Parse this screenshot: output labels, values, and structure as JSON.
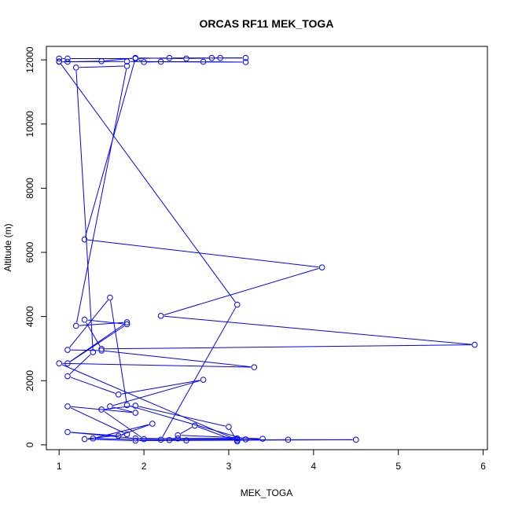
{
  "chart_data": {
    "type": "line",
    "title": "ORCAS RF11 MEK_TOGA",
    "xlabel": "MEK_TOGA",
    "ylabel": "Altitude (m)",
    "xlim": [
      0.85,
      6.05
    ],
    "ylim": [
      -150,
      12420
    ],
    "x_ticks": [
      1,
      2,
      3,
      4,
      5,
      6
    ],
    "y_ticks": [
      0,
      2000,
      4000,
      6000,
      8000,
      10000,
      12000
    ],
    "x_tick_labels": [
      "1",
      "2",
      "3",
      "4",
      "5",
      "6"
    ],
    "y_tick_labels": [
      "0",
      "2000",
      "4000",
      "6000",
      "8000",
      "10000",
      "12000"
    ],
    "series_color": "#0000ff",
    "marker": "open-circle",
    "grid": false,
    "points": [
      [
        1.0,
        12040
      ],
      [
        1.1,
        12040
      ],
      [
        1.9,
        12040
      ],
      [
        2.3,
        12060
      ],
      [
        2.8,
        12060
      ],
      [
        3.2,
        12060
      ],
      [
        2.9,
        12060
      ],
      [
        2.5,
        12040
      ],
      [
        1.9,
        12060
      ],
      [
        1.5,
        11960
      ],
      [
        1.1,
        11940
      ],
      [
        1.0,
        11940
      ],
      [
        1.8,
        11950
      ],
      [
        2.7,
        11940
      ],
      [
        3.2,
        11930
      ],
      [
        2.2,
        11940
      ],
      [
        2.0,
        11930
      ],
      [
        1.9,
        12050
      ],
      [
        1.3,
        6400
      ],
      [
        4.1,
        5530
      ],
      [
        2.2,
        4020
      ],
      [
        5.9,
        3120
      ],
      [
        1.5,
        2990
      ],
      [
        1.3,
        3900
      ],
      [
        1.8,
        3760
      ],
      [
        1.1,
        2540
      ],
      [
        1.8,
        3820
      ],
      [
        1.2,
        3710
      ],
      [
        1.8,
        11810
      ],
      [
        1.2,
        11760
      ],
      [
        1.4,
        2890
      ],
      [
        1.1,
        2140
      ],
      [
        1.7,
        1570
      ],
      [
        2.7,
        2030
      ],
      [
        1.6,
        1200
      ],
      [
        1.9,
        1000
      ],
      [
        1.1,
        1200
      ],
      [
        1.8,
        330
      ],
      [
        1.3,
        180
      ],
      [
        1.9,
        130
      ],
      [
        3.7,
        160
      ],
      [
        4.5,
        160
      ],
      [
        2.5,
        140
      ],
      [
        1.4,
        200
      ],
      [
        2.1,
        660
      ],
      [
        1.7,
        280
      ],
      [
        1.1,
        400
      ],
      [
        1.9,
        200
      ],
      [
        3.1,
        200
      ],
      [
        2.4,
        200
      ],
      [
        2.3,
        150
      ],
      [
        2.0,
        180
      ],
      [
        1.5,
        1100
      ],
      [
        1.9,
        1220
      ],
      [
        3.0,
        560
      ],
      [
        3.1,
        110
      ],
      [
        2.6,
        600
      ],
      [
        2.4,
        300
      ],
      [
        3.4,
        190
      ],
      [
        3.1,
        150
      ],
      [
        1.0,
        2540
      ],
      [
        3.3,
        2420
      ],
      [
        1.5,
        2940
      ],
      [
        1.1,
        2960
      ],
      [
        1.6,
        4590
      ],
      [
        1.8,
        1240
      ],
      [
        3.2,
        170
      ],
      [
        2.2,
        160
      ],
      [
        3.1,
        4370
      ],
      [
        1.0,
        11950
      ]
    ]
  }
}
